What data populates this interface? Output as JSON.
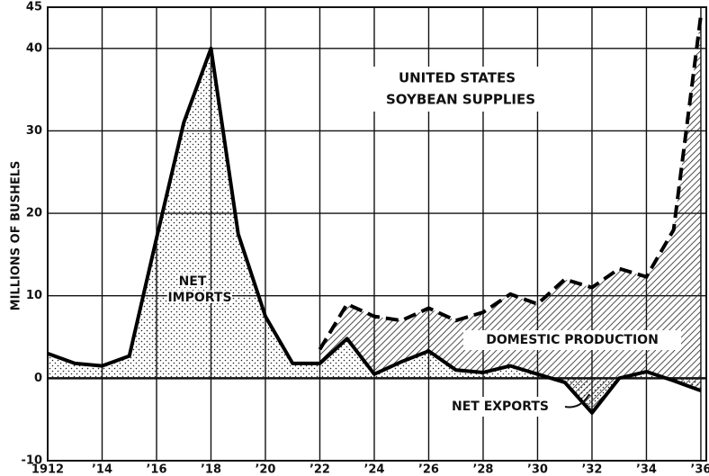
{
  "chart_data": {
    "type": "stacked-area-line",
    "title_lines": [
      "UNITED STATES",
      "SOYBEAN SUPPLIES"
    ],
    "y_label": "MILLIONS OF BUSHELS",
    "x": [
      1912,
      1913,
      1914,
      1915,
      1916,
      1917,
      1918,
      1919,
      1920,
      1921,
      1922,
      1923,
      1924,
      1925,
      1926,
      1927,
      1928,
      1929,
      1930,
      1931,
      1932,
      1933,
      1934,
      1935,
      1936
    ],
    "series": [
      {
        "name": "NET IMPORTS",
        "color": "#000000",
        "values": [
          3,
          1.8,
          1.5,
          2.7,
          17,
          31,
          40,
          17.5,
          7.5,
          1.8,
          1.8,
          4.8,
          0.5,
          2,
          3.3,
          1,
          0.7,
          1.5,
          0.5,
          -0.5,
          -4.2,
          0,
          0.8,
          -0.3,
          -1.5
        ]
      },
      {
        "name": "DOMESTIC PRODUCTION",
        "color": "#000000",
        "values": [
          null,
          null,
          null,
          null,
          null,
          null,
          null,
          null,
          null,
          null,
          1.7,
          4.2,
          7,
          5,
          5.2,
          6,
          7.3,
          8.7,
          8.5,
          12.5,
          15.2,
          13.3,
          11.5,
          18.3,
          45.5
        ]
      }
    ],
    "annotations": [
      "NET EXPORTS"
    ],
    "xlim": [
      1912,
      1936.2
    ],
    "xticks": [
      {
        "value": 1912,
        "label": "1912"
      },
      {
        "value": 1914,
        "label": "’14"
      },
      {
        "value": 1916,
        "label": "’16"
      },
      {
        "value": 1918,
        "label": "’18"
      },
      {
        "value": 1920,
        "label": "’20"
      },
      {
        "value": 1922,
        "label": "’22"
      },
      {
        "value": 1924,
        "label": "’24"
      },
      {
        "value": 1926,
        "label": "’26"
      },
      {
        "value": 1928,
        "label": "’28"
      },
      {
        "value": 1930,
        "label": "’30"
      },
      {
        "value": 1932,
        "label": "’32"
      },
      {
        "value": 1934,
        "label": "’34"
      },
      {
        "value": 1936,
        "label": "’36"
      }
    ],
    "ylim": [
      -10,
      45
    ],
    "yticks": [
      -10,
      0,
      10,
      20,
      30,
      40,
      45
    ],
    "grid": true
  }
}
